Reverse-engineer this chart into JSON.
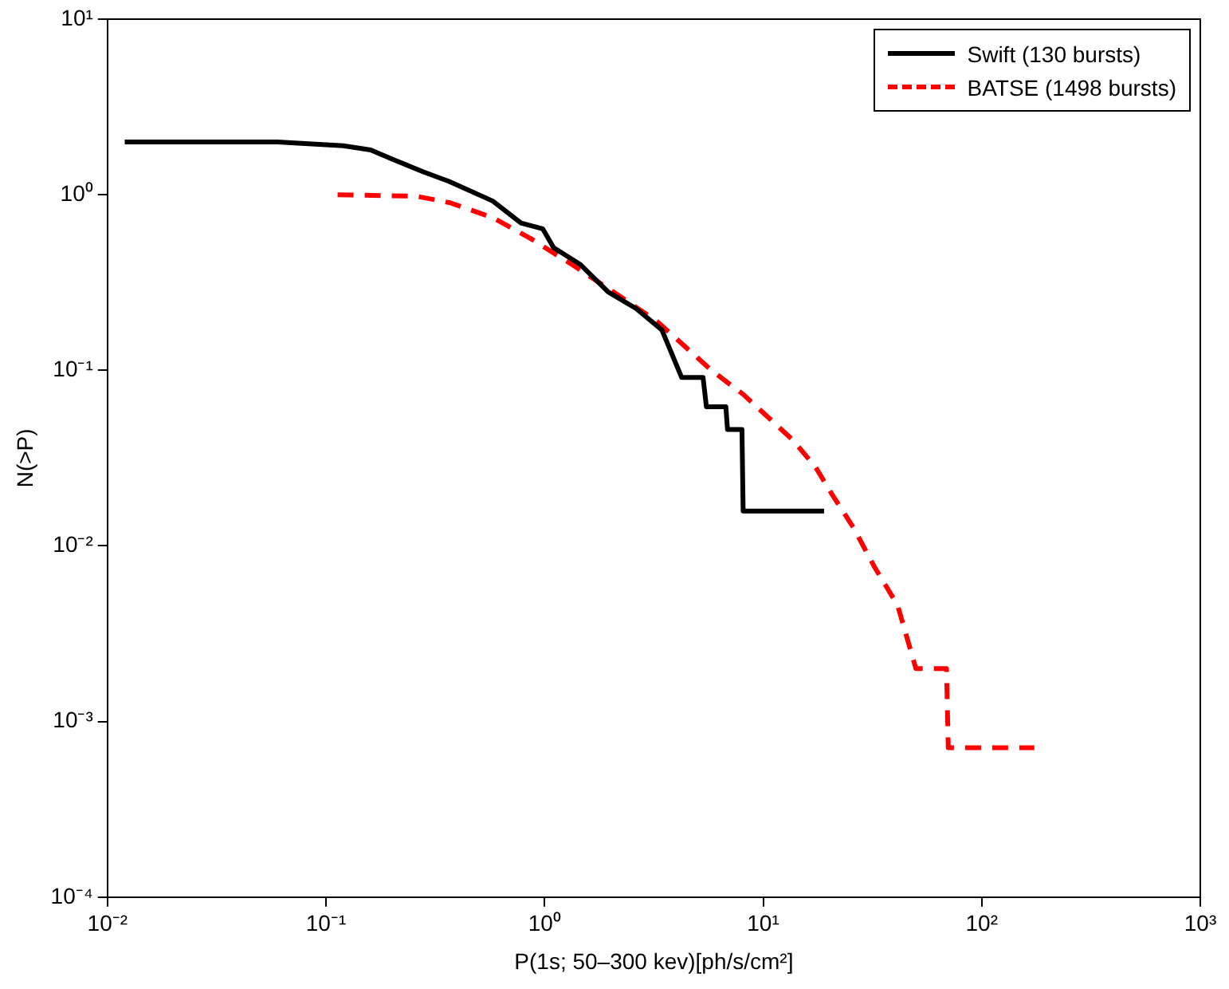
{
  "chart_data": {
    "type": "line",
    "xlabel": "P(1s; 50–300 kev)[ph/s/cm²]",
    "ylabel": "N(>P)",
    "log": "xy",
    "grid": false,
    "legend": "top right",
    "marker": "none",
    "xlim": [
      0.01,
      1000
    ],
    "ylim": [
      0.0001,
      10
    ],
    "xticks": [
      {
        "value": 0.01,
        "label": "10⁻²"
      },
      {
        "value": 0.1,
        "label": "10⁻¹"
      },
      {
        "value": 1,
        "label": "10⁰"
      },
      {
        "value": 10,
        "label": "10¹"
      },
      {
        "value": 100,
        "label": "10²"
      },
      {
        "value": 1000,
        "label": "10³"
      }
    ],
    "yticks": [
      {
        "value": 0.0001,
        "label": "10⁻⁴"
      },
      {
        "value": 0.001,
        "label": "10⁻³"
      },
      {
        "value": 0.01,
        "label": "10⁻²"
      },
      {
        "value": 0.1,
        "label": "10⁻¹"
      },
      {
        "value": 1,
        "label": "10⁰"
      },
      {
        "value": 10,
        "label": "10¹"
      }
    ],
    "series": [
      {
        "name": "Swift (130 bursts)",
        "color": "#000000",
        "line_style": "solid",
        "x": [
          0.012,
          0.06,
          0.12,
          0.16,
          0.207,
          0.279,
          0.366,
          0.58,
          0.78,
          0.98,
          1.1,
          1.46,
          1.95,
          2.62,
          3.44,
          4.24,
          5.31,
          5.5,
          6.75,
          6.87,
          8.0,
          8.1,
          19
        ],
        "values": [
          2,
          2,
          1.9,
          1.8,
          1.57,
          1.35,
          1.19,
          0.92,
          0.69,
          0.64,
          0.5,
          0.4,
          0.28,
          0.225,
          0.17,
          0.091,
          0.091,
          0.062,
          0.062,
          0.046,
          0.046,
          0.0158,
          0.0158
        ]
      },
      {
        "name": "BATSE (1498 bursts)",
        "color": "#ff0000",
        "line_style": "dashed",
        "x": [
          0.113,
          0.26,
          0.37,
          0.58,
          0.87,
          1.38,
          2.06,
          3.27,
          5.8,
          8.1,
          13.7,
          17.4,
          20.7,
          25.9,
          32.3,
          41.2,
          50,
          69,
          70.3,
          174
        ],
        "values": [
          1,
          0.98,
          0.9,
          0.74,
          0.56,
          0.39,
          0.28,
          0.19,
          0.1,
          0.073,
          0.04,
          0.028,
          0.0196,
          0.0127,
          0.0076,
          0.0046,
          0.002,
          0.002,
          0.00071,
          0.00071
        ]
      }
    ]
  }
}
